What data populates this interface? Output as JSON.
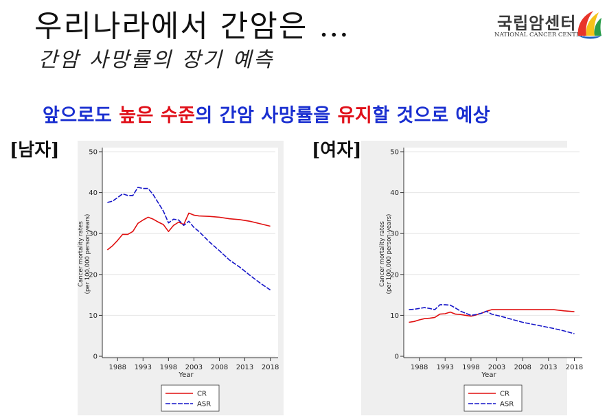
{
  "header": {
    "title": "우리나라에서 간암은 …",
    "subtitle": "간암 사망률의 장기 예측"
  },
  "logo": {
    "name_ko": "국립암센터",
    "name_en": "NATIONAL CANCER CENTER",
    "colors": [
      "#e8352a",
      "#f6c21a",
      "#2a9d4a",
      "#1d5fbf"
    ]
  },
  "headline": {
    "part1": "앞으로도 ",
    "part2": "높은 수준",
    "part3": "의 간암 사망률을 ",
    "part4": "유지",
    "part5": "할 것으로 예상"
  },
  "colors": {
    "cr": "#e01010",
    "asr": "#1515c8",
    "headline_blue": "#1a2fd0",
    "headline_red": "#e0101a"
  },
  "chart_data": [
    {
      "type": "line",
      "panel_label": "[남자]",
      "xlabel": "Year",
      "ylabel_line1": "Cancer mortality rates",
      "ylabel_line2": "(per 100,000 person-years)",
      "xlim": [
        1985,
        2019
      ],
      "ylim": [
        0,
        50
      ],
      "xticks": [
        1988,
        1993,
        1998,
        2003,
        2008,
        2013,
        2018
      ],
      "yticks": [
        0,
        10,
        20,
        30,
        40,
        50
      ],
      "legend": [
        "CR",
        "ASR"
      ],
      "legend_position": "bottom",
      "series": [
        {
          "name": "CR",
          "style": "solid",
          "x": [
            1986,
            1987,
            1988,
            1989,
            1990,
            1991,
            1992,
            1993,
            1994,
            1995,
            1996,
            1997,
            1998,
            1999,
            2000,
            2001,
            2002,
            2003,
            2004,
            2006,
            2008,
            2010,
            2012,
            2014,
            2016,
            2018
          ],
          "values": [
            26.0,
            27.0,
            28.3,
            29.8,
            29.8,
            30.5,
            32.5,
            33.3,
            34.0,
            33.5,
            32.8,
            32.2,
            30.5,
            32.0,
            32.8,
            32.2,
            35.0,
            34.5,
            34.3,
            34.2,
            34.0,
            33.6,
            33.4,
            33.0,
            32.4,
            31.8
          ]
        },
        {
          "name": "ASR",
          "style": "dashed",
          "x": [
            1986,
            1987,
            1988,
            1989,
            1990,
            1991,
            1992,
            1993,
            1994,
            1995,
            1996,
            1997,
            1998,
            1999,
            2000,
            2001,
            2002,
            2003,
            2004,
            2006,
            2008,
            2010,
            2012,
            2014,
            2016,
            2018
          ],
          "values": [
            37.6,
            37.9,
            38.8,
            39.7,
            39.3,
            39.3,
            41.3,
            41.0,
            41.0,
            39.5,
            37.5,
            35.5,
            32.6,
            33.5,
            33.3,
            32.0,
            33.0,
            31.5,
            30.5,
            28.0,
            25.8,
            23.5,
            21.8,
            19.8,
            17.9,
            16.2
          ]
        }
      ]
    },
    {
      "type": "line",
      "panel_label": "[여자]",
      "xlabel": "Year",
      "ylabel_line1": "Cancer mortality rates",
      "ylabel_line2": "(per 100,000 person-years)",
      "xlim": [
        1985,
        2019
      ],
      "ylim": [
        0,
        50
      ],
      "xticks": [
        1988,
        1993,
        1998,
        2003,
        2008,
        2013,
        2018
      ],
      "yticks": [
        0,
        10,
        20,
        30,
        40,
        50
      ],
      "legend": [
        "CR",
        "ASR"
      ],
      "legend_position": "bottom",
      "series": [
        {
          "name": "CR",
          "style": "solid",
          "x": [
            1986,
            1987,
            1988,
            1989,
            1990,
            1991,
            1992,
            1993,
            1994,
            1995,
            1996,
            1997,
            1998,
            1999,
            2000,
            2001,
            2002,
            2004,
            2006,
            2008,
            2010,
            2012,
            2014,
            2016,
            2018
          ],
          "values": [
            8.3,
            8.5,
            8.9,
            9.2,
            9.3,
            9.5,
            10.3,
            10.4,
            10.8,
            10.3,
            10.2,
            10.0,
            9.8,
            10.1,
            10.5,
            11.0,
            11.4,
            11.4,
            11.4,
            11.4,
            11.4,
            11.4,
            11.4,
            11.1,
            10.9
          ]
        },
        {
          "name": "ASR",
          "style": "dashed",
          "x": [
            1986,
            1987,
            1988,
            1989,
            1990,
            1991,
            1992,
            1993,
            1994,
            1995,
            1996,
            1997,
            1998,
            1999,
            2000,
            2001,
            2002,
            2004,
            2006,
            2008,
            2010,
            2012,
            2014,
            2016,
            2018
          ],
          "values": [
            11.4,
            11.5,
            11.7,
            11.9,
            11.7,
            11.4,
            12.6,
            12.6,
            12.5,
            11.8,
            11.0,
            10.5,
            10.0,
            10.2,
            10.5,
            11.0,
            10.3,
            9.7,
            9.0,
            8.3,
            7.8,
            7.3,
            6.8,
            6.2,
            5.5
          ]
        }
      ]
    }
  ]
}
